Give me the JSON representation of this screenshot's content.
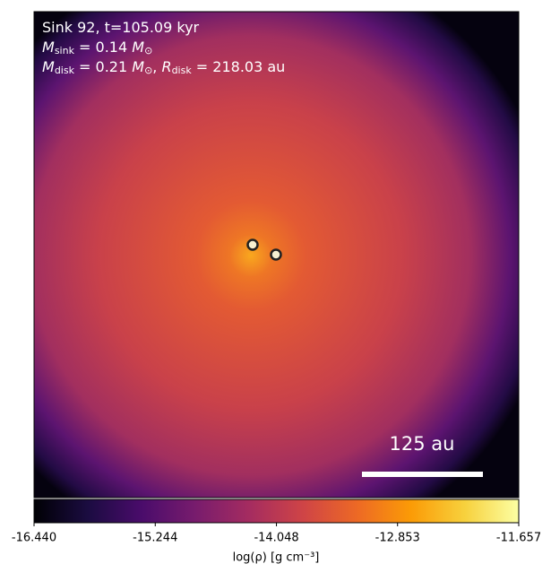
{
  "chart_data": {
    "type": "image",
    "annotations": [
      [
        "Sink 92, t=105.09 kyr"
      ],
      [
        "M",
        "sink",
        " = 0.14 ",
        "M",
        "⊙"
      ],
      [
        "M",
        "disk",
        " = 0.21 ",
        "M",
        "⊙",
        ", ",
        "R",
        "disk",
        " = 218.03 au"
      ]
    ],
    "scale_label": "125 au",
    "colorbar": {
      "label": "log(ρ) [g cm⁻³]",
      "xlim": [
        -16.44,
        -11.657
      ],
      "xticks": [
        {
          "value": -16.44,
          "label": "-16.440"
        },
        -15.244,
        -14.048,
        -12.853,
        -11.657
      ],
      "colors": [
        "#000004",
        "#1b0c41",
        "#4a0c6b",
        "#781c6d",
        "#a52c60",
        "#cf4446",
        "#ed6925",
        "#fb9b06",
        "#f7d13d",
        "#fcffa4"
      ]
    }
  }
}
